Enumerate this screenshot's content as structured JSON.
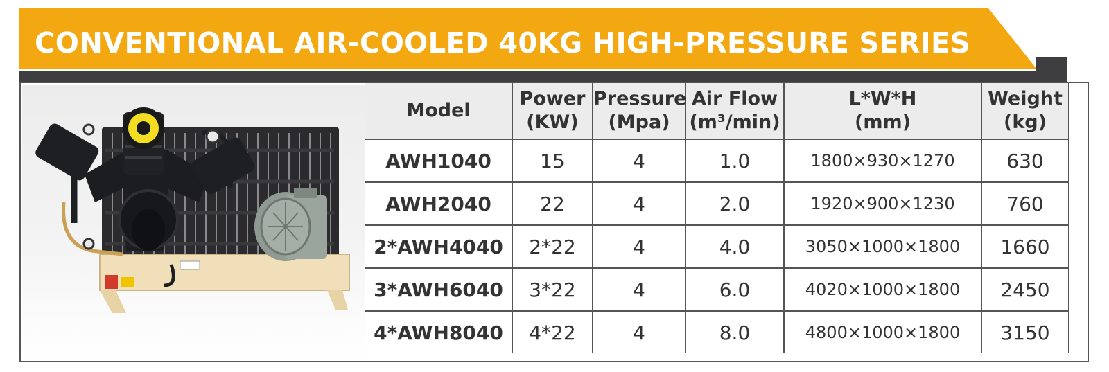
{
  "banner": {
    "title": "CONVENTIONAL AIR-COOLED 40KG HIGH-PRESSURE SERIES"
  },
  "colors": {
    "banner_yellow": "#f3a710",
    "banner_shadow": "#3e3e40",
    "header_bg": "#ececec",
    "border": "#555555"
  },
  "table": {
    "headers": [
      {
        "line1": "Model",
        "line2": ""
      },
      {
        "line1": "Power",
        "line2": "(KW)"
      },
      {
        "line1": "Pressure",
        "line2": "(Mpa)"
      },
      {
        "line1": "Air Flow",
        "line2": "(m³/min)"
      },
      {
        "line1": "L*W*H",
        "line2": "(mm)"
      },
      {
        "line1": "Weight",
        "line2": "(kg)"
      }
    ],
    "rows": [
      {
        "model": "AWH1040",
        "power": "15",
        "pressure": "4",
        "airflow": "1.0",
        "dims": "1800×930×1270",
        "weight": "630"
      },
      {
        "model": "AWH2040",
        "power": "22",
        "pressure": "4",
        "airflow": "2.0",
        "dims": "1920×900×1230",
        "weight": "760"
      },
      {
        "model": "2*AWH4040",
        "power": "2*22",
        "pressure": "4",
        "airflow": "4.0",
        "dims": "3050×1000×1800",
        "weight": "1660"
      },
      {
        "model": "3*AWH6040",
        "power": "3*22",
        "pressure": "4",
        "airflow": "6.0",
        "dims": "4020×1000×1800",
        "weight": "2450"
      },
      {
        "model": "4*AWH8040",
        "power": "4*22",
        "pressure": "4",
        "airflow": "8.0",
        "dims": "4800×1000×1800",
        "weight": "3150"
      }
    ]
  },
  "image": {
    "subject": "air-compressor-icon"
  }
}
